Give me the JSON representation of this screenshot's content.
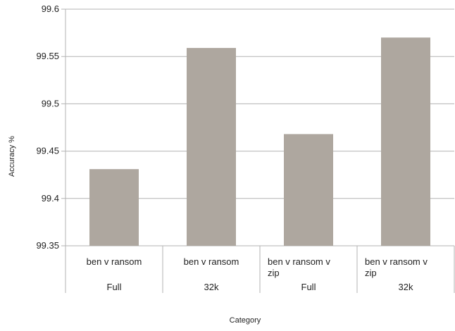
{
  "chart_data": {
    "type": "bar",
    "title": "",
    "xlabel": "Category",
    "ylabel": "Accuracy %",
    "ylim": [
      99.35,
      99.6
    ],
    "yticks": [
      "99.35",
      "99.4",
      "99.45",
      "99.5",
      "99.55",
      "99.6"
    ],
    "grid": true,
    "legend": "none",
    "bar_color": "#aea79f",
    "categories": [
      {
        "label_lines": [
          "ben v ransom"
        ],
        "group": "Full"
      },
      {
        "label_lines": [
          "ben v ransom"
        ],
        "group": "32k"
      },
      {
        "label_lines": [
          "ben v ransom v",
          "zip"
        ],
        "group": "Full"
      },
      {
        "label_lines": [
          "ben v ransom v",
          "zip"
        ],
        "group": "32k"
      }
    ],
    "values": [
      99.431,
      99.559,
      99.468,
      99.57
    ]
  }
}
